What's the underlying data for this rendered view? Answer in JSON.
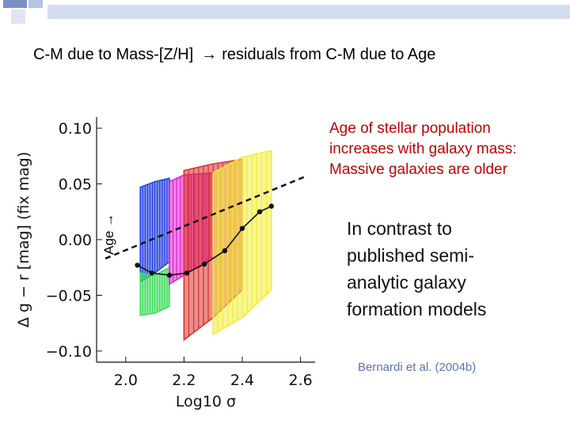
{
  "slide": {
    "title_left": "C-M due to Mass-[Z/H]",
    "title_arrow": "→",
    "title_right": "residuals from C-M due to Age",
    "age_label": "Age →",
    "note_lines": [
      "Age of stellar population",
      "increases with galaxy mass:",
      "Massive galaxies are older"
    ],
    "contrast_lines": [
      "In contrast to",
      "published semi-",
      "analytic galaxy",
      "formation models"
    ],
    "citation": "Bernardi et al. (2004b)"
  },
  "chart_data": {
    "type": "area",
    "xlabel": "Log10 σ",
    "ylabel": "Δ g − r [mag] (fix mag)",
    "xlim": [
      1.9,
      2.65
    ],
    "ylim": [
      -0.11,
      0.11
    ],
    "xticks": [
      2.0,
      2.2,
      2.4,
      2.6
    ],
    "xtick_labels": [
      "2.0",
      "2.2",
      "2.4",
      "2.6"
    ],
    "yticks": [
      0.1,
      0.05,
      0.0,
      -0.05,
      -0.1
    ],
    "ytick_labels": [
      "0.10",
      "0.05",
      "0.00",
      "−0.05",
      "−0.10"
    ],
    "fit_line": {
      "x": [
        1.93,
        2.62
      ],
      "y": [
        -0.017,
        0.057
      ]
    },
    "colors": {
      "blue": "#1f3fe0",
      "green": "#3ddc5a",
      "magenta": "#e21fd0",
      "red": "#d9302c",
      "yellow": "#f2ec3a",
      "pink": "#ff6fb8",
      "cyan": "#22d6d6",
      "points": "#111111"
    },
    "bands": [
      {
        "name": "blue",
        "x": [
          2.05,
          2.1,
          2.15
        ],
        "upper": [
          0.047,
          0.052,
          0.055
        ],
        "lower": [
          -0.038,
          -0.03,
          -0.02
        ]
      },
      {
        "name": "green",
        "x": [
          2.05,
          2.1,
          2.15
        ],
        "upper": [
          -0.03,
          -0.032,
          -0.025
        ],
        "lower": [
          -0.068,
          -0.066,
          -0.06
        ]
      },
      {
        "name": "magenta",
        "x": [
          2.15,
          2.2,
          2.3
        ],
        "upper": [
          0.052,
          0.058,
          0.06
        ],
        "lower": [
          -0.04,
          -0.032,
          -0.015
        ]
      },
      {
        "name": "red",
        "x": [
          2.2,
          2.3,
          2.4
        ],
        "upper": [
          0.062,
          0.068,
          0.072
        ],
        "lower": [
          -0.09,
          -0.07,
          -0.045
        ]
      },
      {
        "name": "yellow",
        "x": [
          2.3,
          2.4,
          2.5
        ],
        "upper": [
          0.06,
          0.074,
          0.08
        ],
        "lower": [
          -0.085,
          -0.07,
          -0.045
        ]
      }
    ],
    "model_points": [
      {
        "x": 2.04,
        "y": -0.023
      },
      {
        "x": 2.09,
        "y": -0.03
      },
      {
        "x": 2.15,
        "y": -0.032
      },
      {
        "x": 2.21,
        "y": -0.03
      },
      {
        "x": 2.27,
        "y": -0.022
      },
      {
        "x": 2.34,
        "y": -0.01
      },
      {
        "x": 2.4,
        "y": 0.01
      },
      {
        "x": 2.46,
        "y": 0.025
      },
      {
        "x": 2.5,
        "y": 0.03
      }
    ]
  }
}
